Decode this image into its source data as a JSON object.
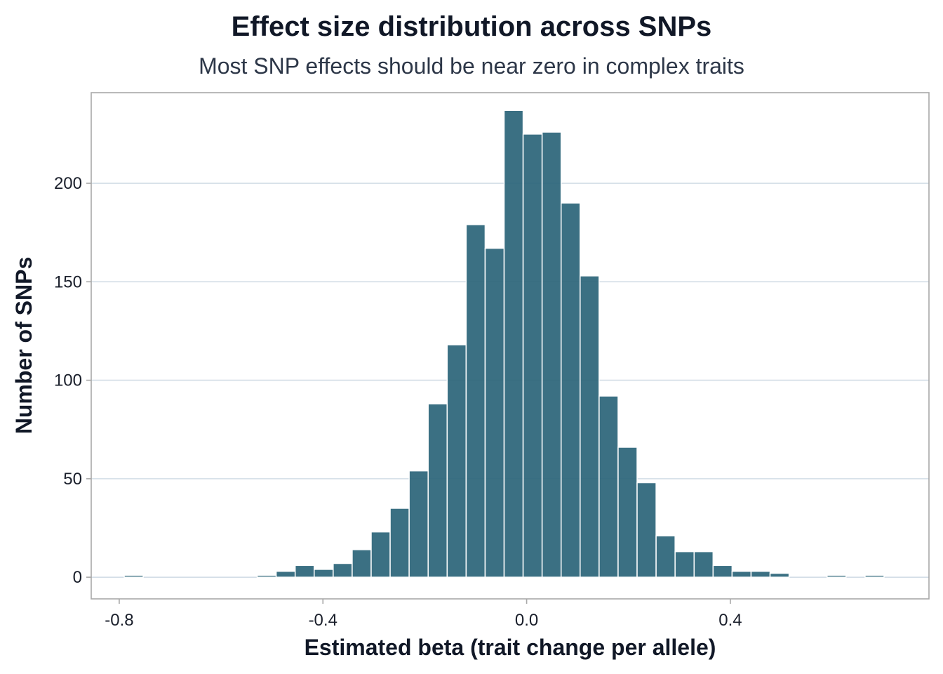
{
  "chart_data": {
    "type": "bar",
    "subtype": "histogram",
    "title": "Effect size distribution across SNPs",
    "subtitle": "Most SNP effects should be near zero in complex traits",
    "xlabel": "Estimated beta (trait change per allele)",
    "ylabel": "Number of SNPs",
    "xlim": [
      -0.855,
      0.79
    ],
    "ylim": [
      -11,
      246
    ],
    "x_ticks": [
      -0.8,
      -0.4,
      0.0,
      0.4
    ],
    "x_tick_labels": [
      "-0.8",
      "-0.4",
      "0.0",
      "0.4"
    ],
    "y_ticks": [
      0,
      50,
      100,
      150,
      200
    ],
    "y_tick_labels": [
      "0",
      "50",
      "100",
      "150",
      "200"
    ],
    "grid": "horizontal",
    "legend": "none",
    "bar_color": "#2a6478",
    "bin_start": -0.8275,
    "bin_width": 0.0373,
    "counts": [
      0,
      1,
      0,
      0,
      0,
      0,
      0,
      0,
      1,
      3,
      6,
      4,
      7,
      14,
      23,
      35,
      54,
      88,
      118,
      179,
      167,
      237,
      225,
      226,
      190,
      153,
      92,
      66,
      48,
      21,
      13,
      13,
      6,
      3,
      3,
      2,
      0,
      0,
      1,
      0,
      1
    ]
  }
}
